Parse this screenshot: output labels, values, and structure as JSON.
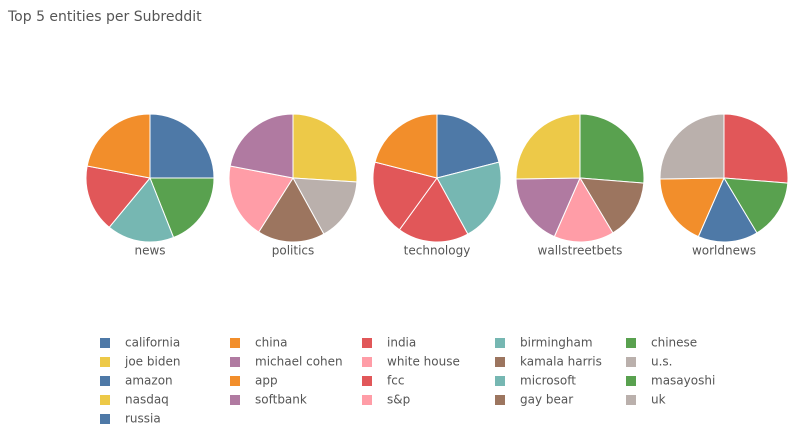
{
  "chart_data": {
    "type": "pie",
    "title": "Top 5 entities per Subreddit",
    "pies": [
      {
        "name": "news",
        "values": [
          25,
          19,
          17,
          17,
          22
        ],
        "colors": [
          "#4e79a7",
          "#59a14f",
          "#76b7b2",
          "#e15759",
          "#f28e2b"
        ]
      },
      {
        "name": "politics",
        "values": [
          26,
          16,
          17,
          19,
          22
        ],
        "colors": [
          "#edc948",
          "#bab0ac",
          "#9c755f",
          "#ff9da7",
          "#b07aa1"
        ]
      },
      {
        "name": "technology",
        "values": [
          21,
          21,
          18,
          19,
          21
        ],
        "colors": [
          "#4e79a7",
          "#76b7b2",
          "#e15759",
          "#e15759",
          "#f28e2b"
        ]
      },
      {
        "name": "wallstreetbets",
        "values": [
          26,
          15,
          15,
          18,
          25
        ],
        "colors": [
          "#59a14f",
          "#9c755f",
          "#ff9da7",
          "#b07aa1",
          "#edc948"
        ]
      },
      {
        "name": "worldnews",
        "values": [
          26,
          15,
          15,
          18,
          25
        ],
        "colors": [
          "#e15759",
          "#59a14f",
          "#4e79a7",
          "#f28e2b",
          "#bab0ac"
        ]
      }
    ],
    "legend": [
      {
        "name": "california",
        "color": "#4e79a7"
      },
      {
        "name": "china",
        "color": "#f28e2b"
      },
      {
        "name": "india",
        "color": "#e15759"
      },
      {
        "name": "birmingham",
        "color": "#76b7b2"
      },
      {
        "name": "chinese",
        "color": "#59a14f"
      },
      {
        "name": "joe biden",
        "color": "#edc948"
      },
      {
        "name": "michael cohen",
        "color": "#b07aa1"
      },
      {
        "name": "white house",
        "color": "#ff9da7"
      },
      {
        "name": "kamala harris",
        "color": "#9c755f"
      },
      {
        "name": "u.s.",
        "color": "#bab0ac"
      },
      {
        "name": "amazon",
        "color": "#4e79a7"
      },
      {
        "name": "app",
        "color": "#f28e2b"
      },
      {
        "name": "fcc",
        "color": "#e15759"
      },
      {
        "name": "microsoft",
        "color": "#76b7b2"
      },
      {
        "name": "masayoshi",
        "color": "#59a14f"
      },
      {
        "name": "nasdaq",
        "color": "#edc948"
      },
      {
        "name": "softbank",
        "color": "#b07aa1"
      },
      {
        "name": "s&p",
        "color": "#ff9da7"
      },
      {
        "name": "gay bear",
        "color": "#9c755f"
      },
      {
        "name": "uk",
        "color": "#bab0ac"
      },
      {
        "name": "russia",
        "color": "#4e79a7"
      }
    ]
  }
}
